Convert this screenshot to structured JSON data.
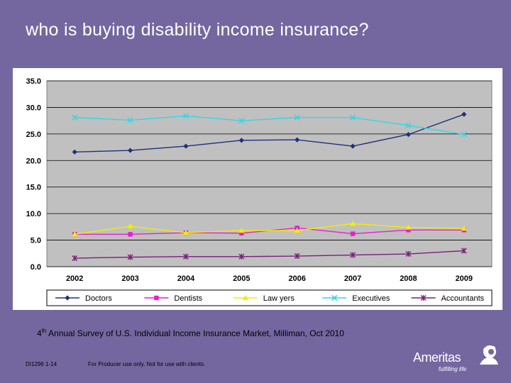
{
  "slide": {
    "title": "who is buying disability income insurance?",
    "source_ordinal": "4",
    "source_superscript": "th",
    "source_text": " Annual Survey of U.S. Individual Income Insurance Market, Milliman, Oct 2010",
    "doc_code": "DI1296 1-14",
    "disclaimer": "For Producer use only. Not for use with clients.",
    "logo_name": "Ameritas",
    "logo_tagline": "fulfilling life"
  },
  "colors": {
    "background": "#7467a0",
    "plot_area": "#c0c0c0",
    "Doctors": "#1f2f7a",
    "Dentists": "#e61fd0",
    "Law yers": "#f2ee00",
    "Executives": "#33d6e6",
    "Accountants": "#7a1f7a"
  },
  "chart_data": {
    "type": "line",
    "title": "",
    "xlabel": "",
    "ylabel": "",
    "categories": [
      "2002",
      "2003",
      "2004",
      "2005",
      "2006",
      "2007",
      "2008",
      "2009"
    ],
    "ylim": [
      0,
      35
    ],
    "yticks": [
      "0.0",
      "5.0",
      "10.0",
      "15.0",
      "20.0",
      "25.0",
      "30.0",
      "35.0"
    ],
    "grid": true,
    "legend_position": "bottom",
    "series": [
      {
        "name": "Doctors",
        "marker": "diamond",
        "values": [
          21.6,
          21.9,
          22.7,
          23.8,
          23.9,
          22.7,
          24.9,
          28.7
        ]
      },
      {
        "name": "Dentists",
        "marker": "square",
        "values": [
          6.1,
          6.1,
          6.4,
          6.3,
          7.3,
          6.2,
          6.9,
          6.9
        ]
      },
      {
        "name": "Law yers",
        "marker": "triangle",
        "values": [
          6.1,
          7.6,
          6.4,
          6.8,
          6.8,
          8.1,
          7.4,
          7.2
        ]
      },
      {
        "name": "Executives",
        "marker": "x",
        "values": [
          28.1,
          27.6,
          28.4,
          27.5,
          28.1,
          28.1,
          26.6,
          24.9
        ]
      },
      {
        "name": "Accountants",
        "marker": "star",
        "values": [
          1.6,
          1.8,
          1.9,
          1.9,
          2.0,
          2.2,
          2.4,
          3.0
        ]
      }
    ]
  }
}
